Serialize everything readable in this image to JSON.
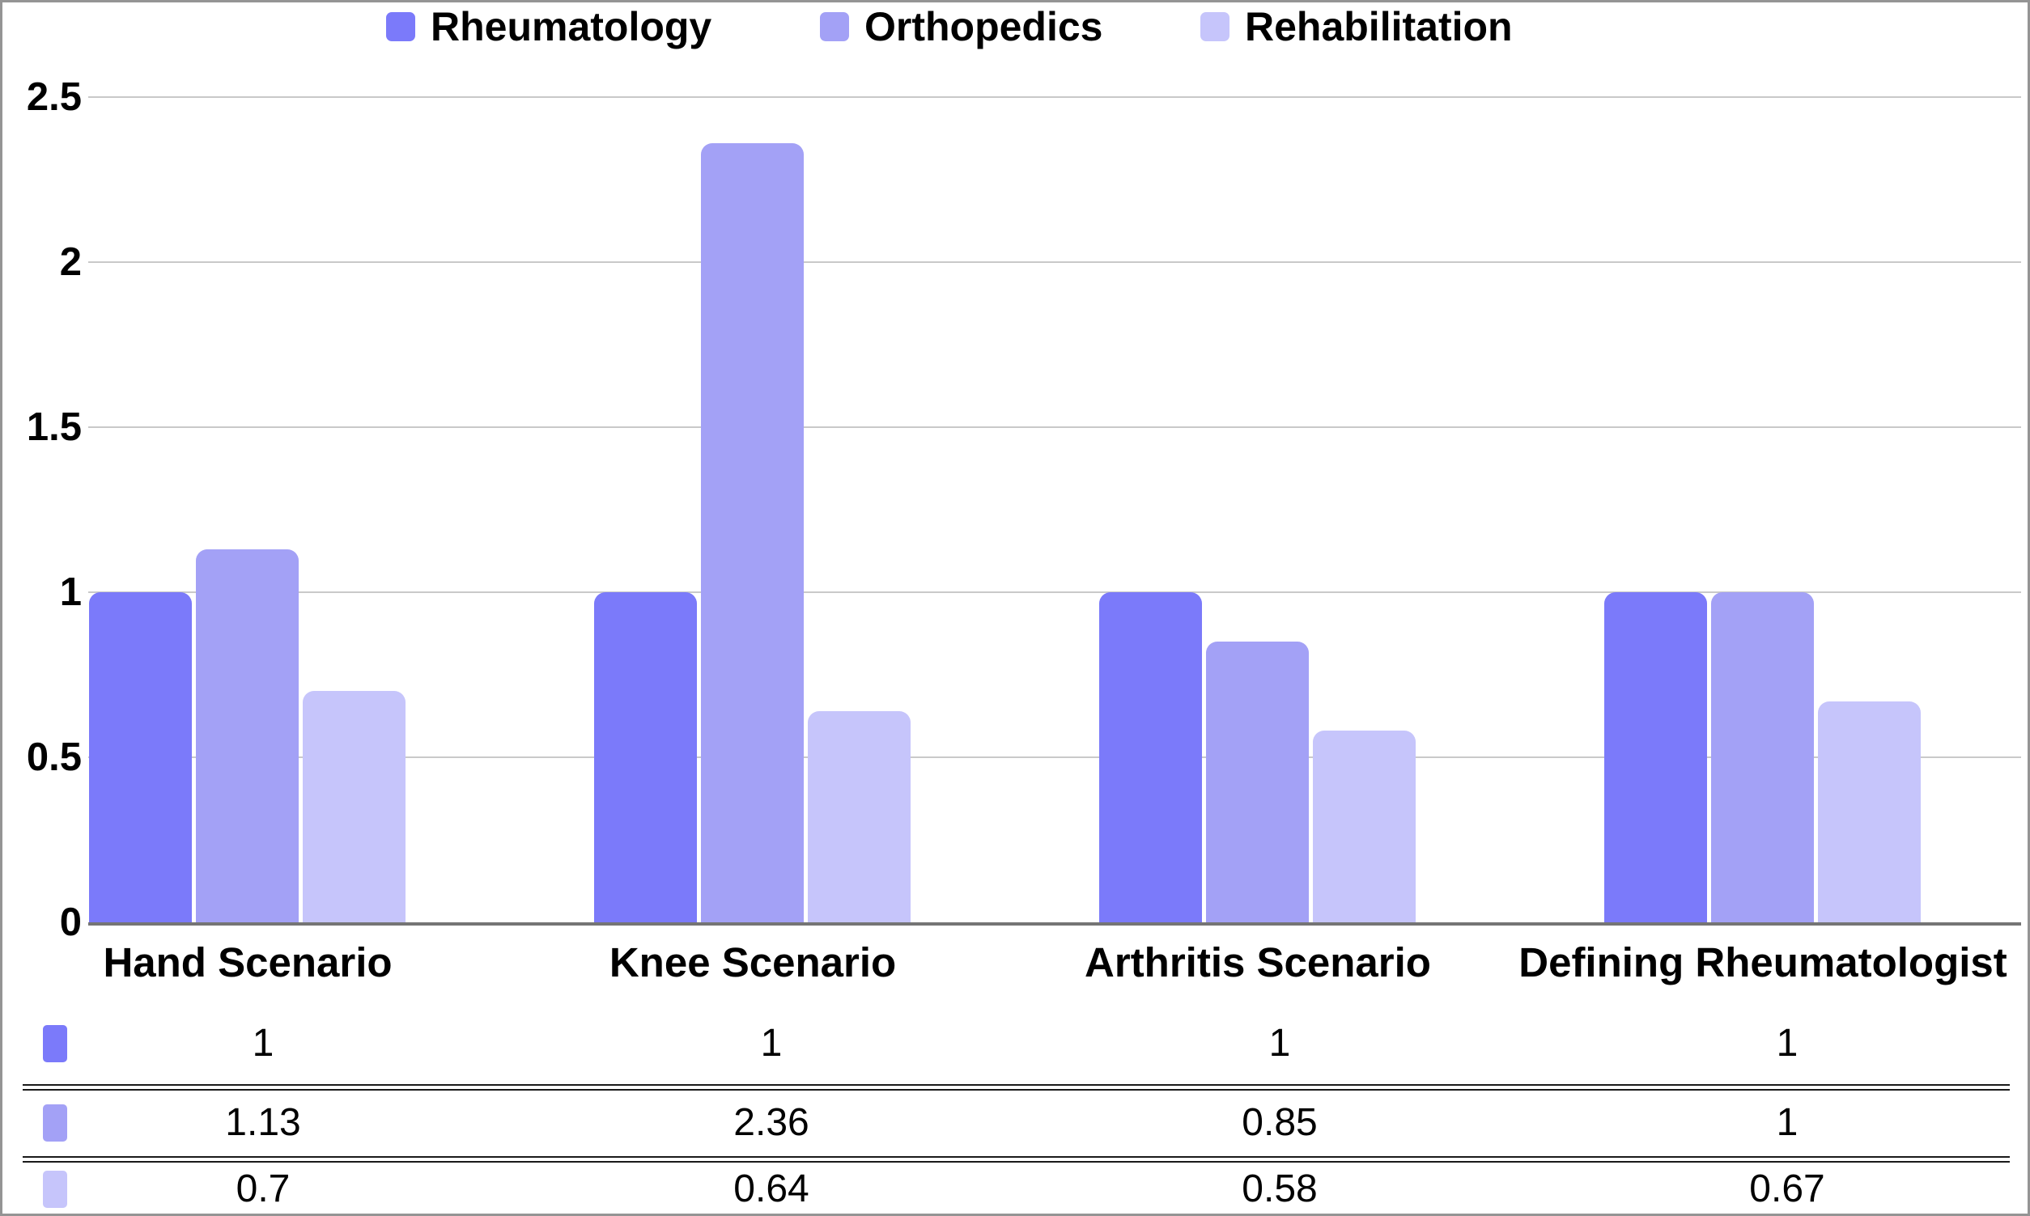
{
  "chart_data": {
    "type": "bar",
    "title": "",
    "xlabel": "",
    "ylabel": "",
    "categories": [
      "Hand Scenario",
      "Knee Scenario",
      "Arthritis Scenario",
      "Defining Rheumatologist"
    ],
    "series": [
      {
        "name": "Rheumatology",
        "color": "#7b7afa",
        "values": [
          1,
          1,
          1,
          1
        ]
      },
      {
        "name": "Orthopedics",
        "color": "#a3a1f6",
        "values": [
          1.13,
          2.36,
          0.85,
          1
        ]
      },
      {
        "name": "Rehabilitation",
        "color": "#c6c5fb",
        "values": [
          0.7,
          0.64,
          0.58,
          0.67
        ]
      }
    ],
    "ylim": [
      0,
      2.5
    ],
    "yticks": [
      0,
      0.5,
      1,
      1.5,
      2,
      2.5
    ],
    "grid": true,
    "legend_position": "top",
    "data_table_shown": true
  },
  "colors": {
    "gridline": "#c9c9c9",
    "axis_line": "#757575",
    "frame_border": "#949494",
    "table_divider": "#1a1a1a",
    "text": "#000000",
    "background": "#ffffff"
  }
}
